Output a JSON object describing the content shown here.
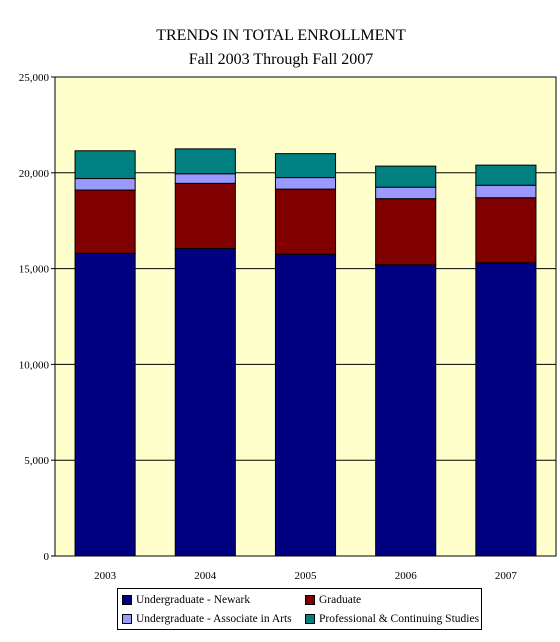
{
  "chart_data": {
    "type": "bar",
    "stacked": true,
    "title": "TRENDS IN TOTAL ENROLLMENT",
    "subtitle": "Fall 2003 Through Fall 2007",
    "categories": [
      "2003",
      "2004",
      "2005",
      "2006",
      "2007"
    ],
    "series": [
      {
        "name": "Undergraduate - Newark",
        "color": "#000080",
        "values": [
          15800,
          16050,
          15750,
          15200,
          15300
        ]
      },
      {
        "name": "Graduate",
        "color": "#800000",
        "values": [
          3300,
          3400,
          3400,
          3450,
          3400
        ]
      },
      {
        "name": "Undergraduate - Associate in Arts",
        "color": "#9999ff",
        "values": [
          600,
          500,
          600,
          600,
          650
        ]
      },
      {
        "name": "Professional & Continuing Studies",
        "color": "#008080",
        "values": [
          1450,
          1300,
          1250,
          1100,
          1050
        ]
      }
    ],
    "ylim": [
      0,
      25000
    ],
    "yticks": [
      "0",
      "5,000",
      "10,000",
      "15,000",
      "20,000",
      "25,000"
    ],
    "ytick_values": [
      0,
      5000,
      10000,
      15000,
      20000,
      25000
    ],
    "grid": true,
    "plot_background": "#ffffcc",
    "legend_position": "bottom"
  }
}
